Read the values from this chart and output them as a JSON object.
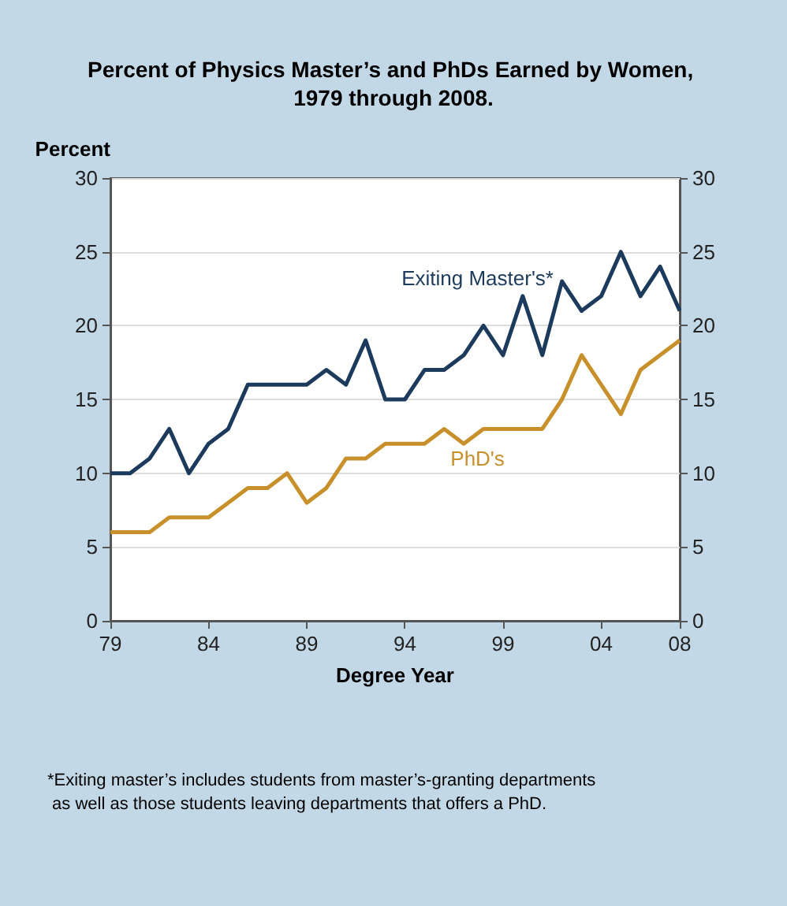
{
  "chart_data": {
    "type": "line",
    "title": "Percent of Physics Master’s and PhDs Earned by Women, 1979 through 2008.",
    "xlabel": "Degree Year",
    "ylabel": "Percent",
    "x": [
      1979,
      1980,
      1981,
      1982,
      1983,
      1984,
      1985,
      1986,
      1987,
      1988,
      1989,
      1990,
      1991,
      1992,
      1993,
      1994,
      1995,
      1996,
      1997,
      1998,
      1999,
      2000,
      2001,
      2002,
      2003,
      2004,
      2005,
      2006,
      2007,
      2008
    ],
    "series": [
      {
        "name": "Exiting Master's*",
        "color": "#1b3a5c",
        "values": [
          10,
          10,
          11,
          13,
          10,
          12,
          13,
          16,
          16,
          16,
          16,
          17,
          16,
          19,
          15,
          15,
          17,
          17,
          18,
          20,
          18,
          22,
          18,
          23,
          21,
          22,
          25,
          22,
          24,
          21
        ]
      },
      {
        "name": "PhD's",
        "color": "#c8902a",
        "values": [
          6,
          6,
          6,
          7,
          7,
          7,
          8,
          9,
          9,
          10,
          8,
          9,
          11,
          11,
          12,
          12,
          12,
          13,
          12,
          13,
          13,
          13,
          13,
          15,
          18,
          16,
          14,
          17,
          18,
          19
        ]
      }
    ],
    "xlim": [
      1979,
      2008
    ],
    "xticks": [
      {
        "value": 1979,
        "label": "79"
      },
      {
        "value": 1984,
        "label": "84"
      },
      {
        "value": 1989,
        "label": "89"
      },
      {
        "value": 1994,
        "label": "94"
      },
      {
        "value": 1999,
        "label": "99"
      },
      {
        "value": 2004,
        "label": "04"
      },
      {
        "value": 2008,
        "label": "08"
      }
    ],
    "ylim": [
      0,
      30
    ],
    "yticks": [
      0,
      5,
      10,
      15,
      20,
      25,
      30
    ],
    "y2lim": [
      0,
      30
    ],
    "y2ticks": [
      0,
      5,
      10,
      15,
      20,
      25,
      30
    ],
    "grid": "y",
    "legend": false,
    "marker": "none",
    "line_style": "solid",
    "annotations": [
      "*Exiting master’s includes students from master’s-granting departments as well as those students leaving departments that offers a PhD."
    ]
  }
}
